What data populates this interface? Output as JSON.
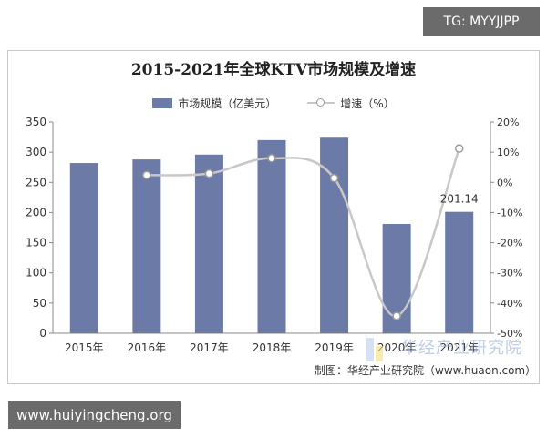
{
  "tg_badge": "TG: MYYJJPP",
  "url_badge": "www.huiyingcheng.org",
  "credit": "制图：华经产业研究院（www.huaon.com）",
  "watermark": "华经产业研究院",
  "chart_data": {
    "type": "bar",
    "title": "2015-2021年全球KTV市场规模及增速",
    "categories": [
      "2015年",
      "2016年",
      "2017年",
      "2018年",
      "2019年",
      "2020年",
      "2021年"
    ],
    "series": [
      {
        "name": "市场规模（亿美元）",
        "type": "bar",
        "axis": "left",
        "color": "#6c7aa7",
        "values": [
          282,
          288,
          296,
          320,
          324,
          181,
          201.14
        ]
      },
      {
        "name": "增速（%）",
        "type": "line",
        "axis": "right",
        "color": "#c8c8c8",
        "values": [
          null,
          2.4,
          2.9,
          8.0,
          1.4,
          -44.3,
          11.2
        ]
      }
    ],
    "data_labels": [
      {
        "category": "2021年",
        "text": "201.14"
      }
    ],
    "y_left": {
      "min": 0,
      "max": 350,
      "ticks": [
        "0",
        "50",
        "100",
        "150",
        "200",
        "250",
        "300",
        "350"
      ]
    },
    "y_right": {
      "min": -50,
      "max": 20,
      "ticks": [
        "-50%",
        "-40%",
        "-30%",
        "-20%",
        "-10%",
        "0%",
        "10%",
        "20%"
      ]
    },
    "grid": false,
    "legend_position": "top-center"
  }
}
